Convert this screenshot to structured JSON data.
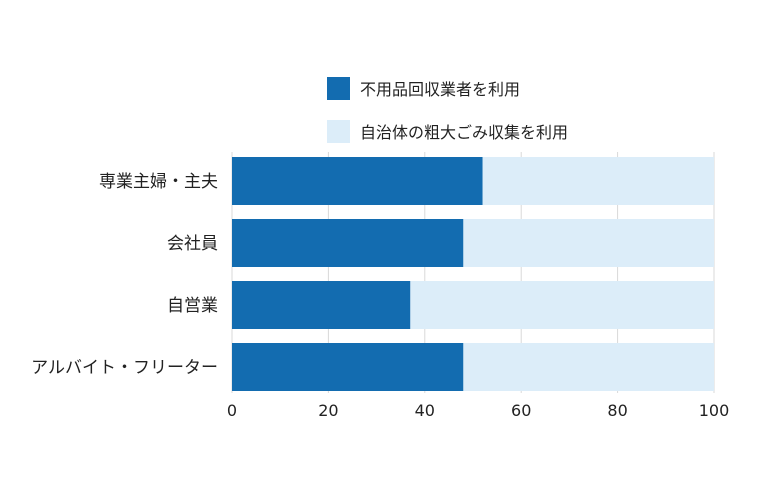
{
  "chart_data": {
    "type": "bar",
    "orientation": "horizontal",
    "stacked": true,
    "categories": [
      "専業主婦・主夫",
      "会社員",
      "自営業",
      "アルバイト・フリーター"
    ],
    "series": [
      {
        "name": "不用品回収業者を利用",
        "values": [
          52,
          48,
          37,
          48
        ],
        "color": "#136cb0"
      },
      {
        "name": "自治体の粗大ごみ収集を利用",
        "values": [
          48,
          52,
          63,
          52
        ],
        "color": "#dcedf9"
      }
    ],
    "xlim": [
      0,
      100
    ],
    "xticks": [
      "0",
      "20",
      "40",
      "60",
      "80",
      "100"
    ],
    "grid": true,
    "legend_position": "top-right",
    "title": "",
    "xlabel": "",
    "ylabel": ""
  }
}
